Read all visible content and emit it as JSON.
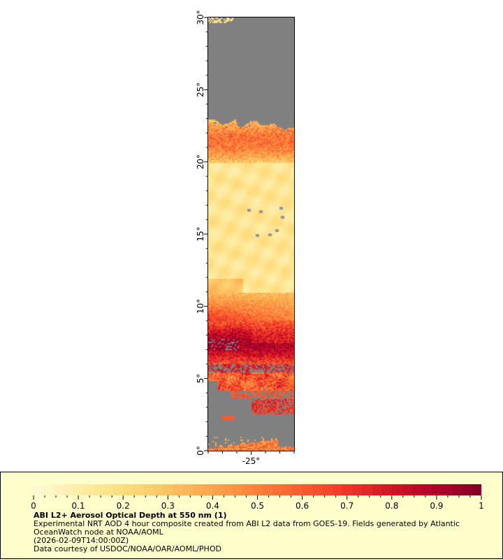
{
  "map": {
    "lat_range": [
      0,
      30
    ],
    "lon_range": [
      -28,
      -22
    ],
    "lat_labels": [
      "0°",
      "5°",
      "10°",
      "15°",
      "20°",
      "25°",
      "30°"
    ],
    "lon_labels": [
      "-25°"
    ],
    "no_data_color": "#808080"
  },
  "legend": {
    "ticks": [
      "0",
      "0.1",
      "0.2",
      "0.3",
      "0.4",
      "0.5",
      "0.6",
      "0.7",
      "0.8",
      "0.9",
      "1"
    ],
    "range": [
      0,
      1
    ],
    "colormap": [
      "#fffbd4",
      "#feeba2",
      "#fed976",
      "#fdb85a",
      "#fd9543",
      "#fc6c33",
      "#f2422a",
      "#d91b25",
      "#b4002a",
      "#800026"
    ],
    "title": "ABI L2+ Aerosol Optical Depth at 550 nm (1)",
    "description_line1": "Experimental NRT AOD 4 hour composite created from ABI L2 data from GOES-19. Fields generated by Atlantic",
    "description_line2": "OceanWatch node at NOAA/AOML",
    "timestamp": "(2026-02-09T14:00:00Z)",
    "credit": "Data courtesy of USDOC/NOAA/OAR/AOML/PHOD"
  }
}
